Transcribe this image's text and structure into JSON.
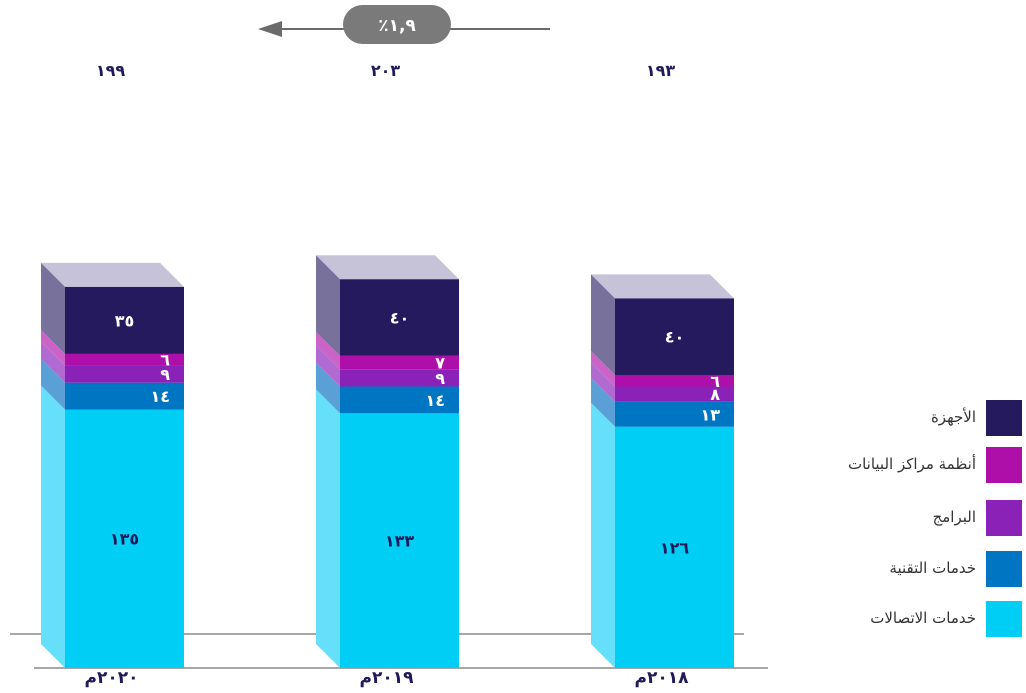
{
  "chart_data": {
    "type": "bar",
    "stacked": true,
    "categories": [
      "٢٠٢٠م",
      "٢٠١٩م",
      "٢٠١٨م"
    ],
    "totals": [
      "١٩٩",
      "٢٠٣",
      "١٩٣"
    ],
    "total_values": [
      199,
      203,
      193
    ],
    "growth_label": "٪١,٩",
    "series": [
      {
        "name": "خدمات الاتصالات",
        "color": "#00cef5",
        "side_color": "#66e0fa",
        "values": [
          135,
          133,
          126
        ],
        "labels": [
          "١٣٥",
          "١٣٣",
          "١٢٦"
        ]
      },
      {
        "name": "خدمات التقنية",
        "color": "#0075c2",
        "side_color": "#5a9fd6",
        "values": [
          14,
          14,
          13
        ],
        "labels": [
          "١٤",
          "١٤",
          "١٣"
        ]
      },
      {
        "name": "البرامج",
        "color": "#8a22b8",
        "side_color": "#b06ad2",
        "values": [
          9,
          9,
          8
        ],
        "labels": [
          "٩",
          "٩",
          "٨"
        ]
      },
      {
        "name": "أنظمة مراكز البيانات",
        "color": "#ad0fa8",
        "side_color": "#cc64c8",
        "values": [
          6,
          7,
          6
        ],
        "labels": [
          "٦",
          "٧",
          "٦"
        ]
      },
      {
        "name": "الأجهزة",
        "color": "#251a5e",
        "side_color": "#77719c",
        "values": [
          35,
          40,
          40
        ],
        "labels": [
          "٣٥",
          "٤٠",
          "٤٠"
        ]
      }
    ],
    "legend_position": "right",
    "grid": false
  }
}
